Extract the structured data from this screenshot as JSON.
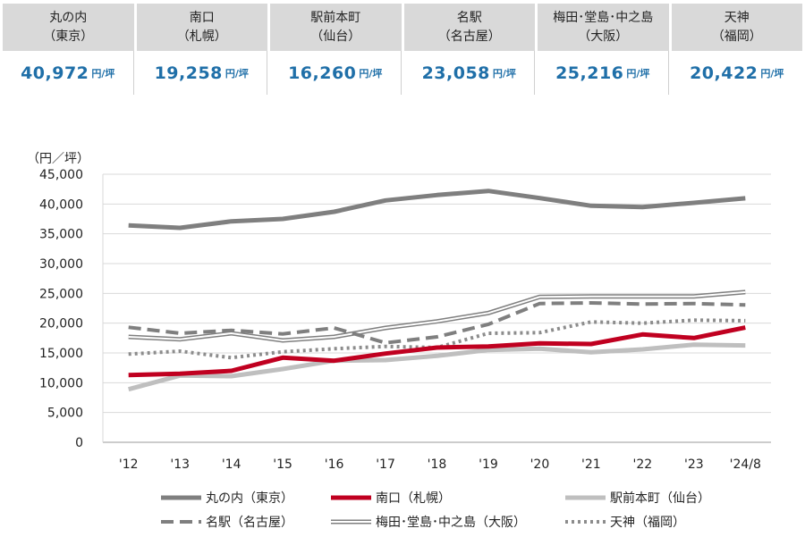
{
  "cards": [
    {
      "city": "丸の内",
      "region": "（東京）",
      "price": "40,972",
      "unit": "円/坪"
    },
    {
      "city": "南口",
      "region": "（札幌）",
      "price": "19,258",
      "unit": "円/坪"
    },
    {
      "city": "駅前本町",
      "region": "（仙台）",
      "price": "16,260",
      "unit": "円/坪"
    },
    {
      "city": "名駅",
      "region": "（名古屋）",
      "price": "23,058",
      "unit": "円/坪"
    },
    {
      "city": "梅田･堂島･中之島",
      "region": "（大阪）",
      "price": "25,216",
      "unit": "円/坪"
    },
    {
      "city": "天神",
      "region": "（福岡）",
      "price": "20,422",
      "unit": "円/坪"
    }
  ],
  "chart_data": {
    "type": "line",
    "ylabel": "（円／坪）",
    "ylim": [
      0,
      45000
    ],
    "yticks": [
      0,
      5000,
      10000,
      15000,
      20000,
      25000,
      30000,
      35000,
      40000,
      45000
    ],
    "ytick_labels": [
      "0",
      "5,000",
      "10,000",
      "15,000",
      "20,000",
      "25,000",
      "30,000",
      "35,000",
      "40,000",
      "45,000"
    ],
    "categories": [
      "'12",
      "'13",
      "'14",
      "'15",
      "'16",
      "'17",
      "'18",
      "'19",
      "'20",
      "'21",
      "'22",
      "'23",
      "'24/8"
    ],
    "grid": "horizontal",
    "legend": "bottom",
    "series": [
      {
        "name": "丸の内（東京）",
        "color": "#7f7f7f",
        "style": "thick",
        "values": [
          36400,
          36000,
          37100,
          37500,
          38700,
          40600,
          41500,
          42200,
          41000,
          39700,
          39500,
          40200,
          40972
        ]
      },
      {
        "name": "南口（札幌）",
        "color": "#c00020",
        "style": "thick",
        "values": [
          11300,
          11500,
          12000,
          14200,
          13700,
          14900,
          15900,
          16100,
          16600,
          16500,
          18100,
          17500,
          19258
        ]
      },
      {
        "name": "駅前本町（仙台）",
        "color": "#bfbfbf",
        "style": "thick",
        "values": [
          8900,
          11200,
          11100,
          12300,
          13700,
          13800,
          14500,
          15500,
          15700,
          15100,
          15600,
          16400,
          16260
        ]
      },
      {
        "name": "名駅（名古屋）",
        "color": "#7f7f7f",
        "style": "dashed",
        "values": [
          19300,
          18300,
          18800,
          18200,
          19200,
          16700,
          17700,
          19800,
          23300,
          23400,
          23200,
          23300,
          23058
        ]
      },
      {
        "name": "梅田･堂島･中之島（大阪）",
        "color": "#7f7f7f",
        "style": "double",
        "values": [
          17700,
          17300,
          18300,
          17100,
          17700,
          19200,
          20300,
          21700,
          24400,
          24500,
          24500,
          24500,
          25216
        ]
      },
      {
        "name": "天神（福岡）",
        "color": "#8c8c8c",
        "style": "dotted",
        "values": [
          14800,
          15300,
          14200,
          15200,
          15700,
          16100,
          15900,
          18300,
          18400,
          20200,
          20000,
          20500,
          20422
        ]
      }
    ]
  }
}
